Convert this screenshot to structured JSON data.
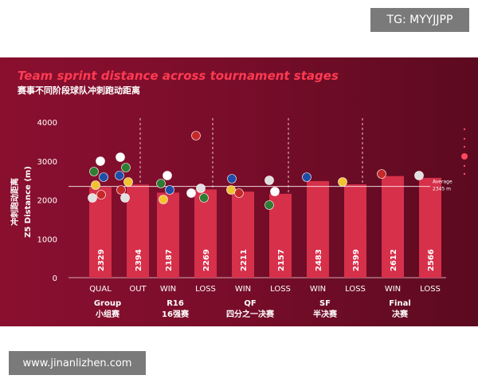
{
  "watermark_top": "TG: MYYJJPP",
  "watermark_bottom": "www.jinanlizhen.com",
  "colors": {
    "panel_bg": "#7a0d2a",
    "bar": "#d6304a",
    "title": "#ff3b52",
    "text": "#ffffff"
  },
  "chart_data": {
    "type": "bar",
    "title": "Team sprint distance across tournament stages",
    "subtitle": "赛事不同阶段球队冲刺跑动距离",
    "ylabel": "Z5 Distance (m)",
    "ylabel_cn": "冲刺跑动距离",
    "ylim": [
      0,
      4000
    ],
    "yticks": [
      "0",
      "1000",
      "2000",
      "3000",
      "4000"
    ],
    "categories": [
      "QUAL",
      "OUT",
      "WIN",
      "LOSS",
      "WIN",
      "LOSS",
      "WIN",
      "LOSS",
      "WIN",
      "LOSS"
    ],
    "values": [
      2329,
      2394,
      2187,
      2269,
      2211,
      2157,
      2483,
      2399,
      2612,
      2566
    ],
    "value_labels": [
      "2329",
      "2394",
      "2187",
      "2269",
      "2211",
      "2157",
      "2483",
      "2399",
      "2612",
      "2566"
    ],
    "groups": [
      {
        "name": "Group",
        "name_cn": "小组赛"
      },
      {
        "name": "R16",
        "name_cn": "16强赛"
      },
      {
        "name": "QF",
        "name_cn": "四分之一决赛"
      },
      {
        "name": "SF",
        "name_cn": "半决赛"
      },
      {
        "name": "Final",
        "name_cn": "决赛"
      }
    ],
    "average": {
      "value": 2345,
      "label": "Average",
      "label_value": "2345 m"
    }
  }
}
